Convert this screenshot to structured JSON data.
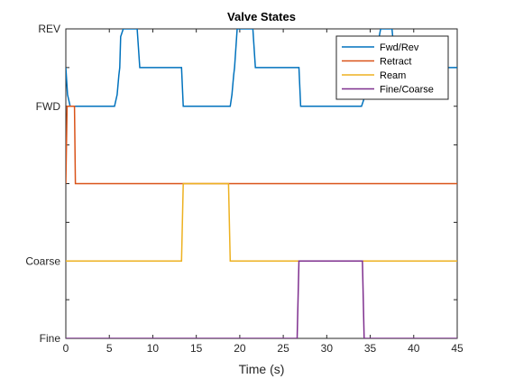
{
  "chart_data": {
    "type": "line",
    "title": "Valve States",
    "xlabel": "Time (s)",
    "ylabel": "",
    "xlim": [
      0,
      45
    ],
    "ylim": [
      0,
      8
    ],
    "x_ticks": [
      0,
      5,
      10,
      15,
      20,
      25,
      30,
      35,
      40,
      45
    ],
    "y_ticks": [
      0,
      1,
      2,
      3,
      4,
      5,
      6,
      7,
      8
    ],
    "y_tick_labels": [
      "Fine",
      "",
      "Coarse",
      "",
      "",
      "",
      "FWD",
      "",
      "REV"
    ],
    "grid": false,
    "legend_position": "top-right",
    "series": [
      {
        "name": "Fwd/Rev",
        "color": "#0072BD",
        "x": [
          0,
          0.2,
          0.5,
          5.6,
          5.9,
          6.1,
          6.2,
          6.3,
          6.6,
          8.2,
          8.5,
          13.3,
          13.5,
          18.9,
          19.1,
          19.3,
          19.4,
          19.7,
          21.5,
          21.8,
          26.8,
          27.0,
          34.0,
          34.3,
          34.7,
          34.9,
          35.5,
          35.7,
          36.2,
          37.5,
          37.7,
          38.0,
          45
        ],
        "y": [
          7.0,
          6.3,
          6.0,
          6.0,
          6.3,
          6.8,
          7.0,
          7.8,
          8.0,
          8.0,
          7.0,
          7.0,
          6.0,
          6.0,
          6.3,
          6.8,
          7.0,
          8.0,
          8.0,
          7.0,
          7.0,
          6.0,
          6.0,
          6.2,
          6.5,
          6.8,
          7.0,
          7.4,
          8.0,
          8.0,
          7.5,
          7.0,
          7.0
        ]
      },
      {
        "name": "Retract",
        "color": "#D95319",
        "x": [
          0,
          0.15,
          0.3,
          1.0,
          1.1,
          45
        ],
        "y": [
          4,
          6.0,
          6.0,
          6.0,
          4,
          4
        ]
      },
      {
        "name": "Ream",
        "color": "#EDB120",
        "x": [
          0,
          13.3,
          13.5,
          18.7,
          18.9,
          45
        ],
        "y": [
          2,
          2,
          4,
          4,
          2,
          2
        ]
      },
      {
        "name": "Fine/Coarse",
        "color": "#7E2F8E",
        "x": [
          0,
          26.6,
          26.8,
          34.1,
          34.3,
          45
        ],
        "y": [
          0,
          0,
          2,
          2,
          0,
          0
        ]
      }
    ]
  }
}
